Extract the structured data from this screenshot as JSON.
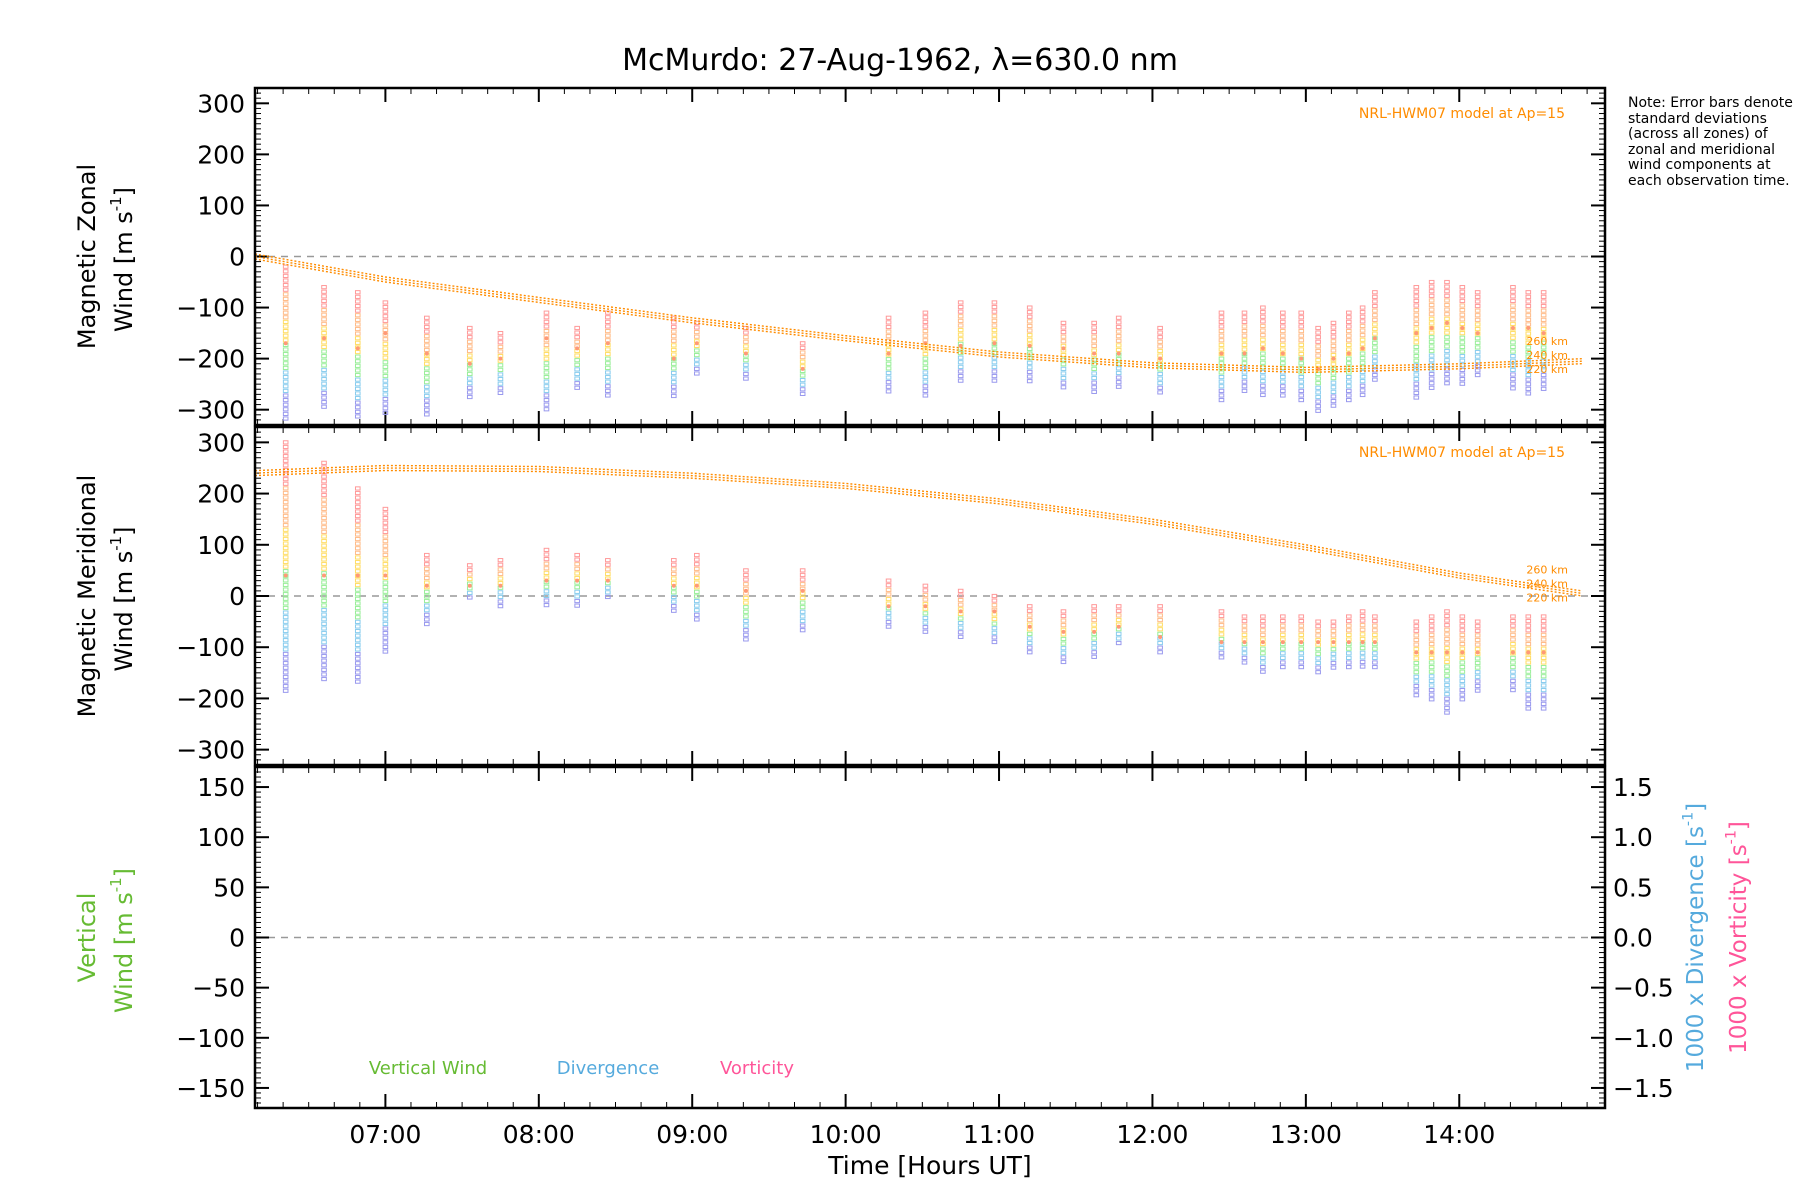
{
  "title": "McMurdo: 27-Aug-1962, λ=630.0 nm",
  "note": "Note: Error bars denote standard deviations (across all zones) of zonal and meridional wind components at each observation time.",
  "colors": {
    "model": "#ff8c00",
    "vertical": "#66bb33",
    "divergence": "#55aadd",
    "vorticity": "#ff5599",
    "zero_line": "#999999"
  },
  "chart_data": [
    {
      "type": "scatter",
      "panel": "zonal",
      "ylabel_line1": "Magnetic Zonal",
      "ylabel_line2": "Wind [m s",
      "ylabel_sup": "-1",
      "ylabel_close": "]",
      "ylim": [
        -330,
        330
      ],
      "yticks": [
        300,
        200,
        100,
        0,
        -100,
        -200,
        -300
      ],
      "ytick_labels": [
        "300",
        "200",
        "100",
        "0",
        "−100",
        "−200",
        "−300"
      ],
      "model_label": "NRL-HWM07 model at Ap=15",
      "alt_labels": [
        "260 km",
        "240 km",
        "220 km"
      ],
      "model_curve": {
        "t": [
          6.15,
          7,
          8,
          9,
          10,
          11,
          12,
          13,
          14,
          14.8
        ],
        "y": [
          0,
          -45,
          -85,
          -125,
          -160,
          -192,
          -213,
          -222,
          -215,
          -205
        ]
      },
      "obs": {
        "t": [
          6.35,
          6.6,
          6.82,
          7.0,
          7.27,
          7.55,
          7.75,
          8.05,
          8.25,
          8.45,
          8.88,
          9.03,
          9.35,
          9.72,
          10.28,
          10.52,
          10.75,
          10.97,
          11.2,
          11.42,
          11.62,
          11.78,
          12.05,
          12.45,
          12.6,
          12.72,
          12.85,
          12.97,
          13.08,
          13.18,
          13.28,
          13.37,
          13.45,
          13.72,
          13.82,
          13.92,
          14.02,
          14.12,
          14.35,
          14.45,
          14.55
        ],
        "mean": [
          -170,
          -160,
          -180,
          -150,
          -190,
          -210,
          -200,
          -160,
          -180,
          -170,
          -200,
          -170,
          -190,
          -220,
          -190,
          -170,
          -175,
          -170,
          -175,
          -180,
          -190,
          -190,
          -200,
          -190,
          -190,
          -180,
          -190,
          -200,
          -220,
          -200,
          -190,
          -180,
          -160,
          -150,
          -140,
          -130,
          -140,
          -150,
          -140,
          -140,
          -150
        ],
        "lo": [
          -320,
          -300,
          -320,
          -310,
          -310,
          -280,
          -270,
          -300,
          -260,
          -280,
          -280,
          -230,
          -240,
          -270,
          -270,
          -280,
          -250,
          -250,
          -250,
          -260,
          -270,
          -260,
          -270,
          -290,
          -270,
          -280,
          -280,
          -290,
          -310,
          -300,
          -290,
          -280,
          -250,
          -280,
          -260,
          -250,
          -250,
          -240,
          -260,
          -270,
          -260
        ],
        "hi": [
          -20,
          -60,
          -70,
          -90,
          -120,
          -140,
          -150,
          -110,
          -140,
          -110,
          -120,
          -130,
          -140,
          -170,
          -120,
          -110,
          -90,
          -90,
          -100,
          -130,
          -130,
          -120,
          -140,
          -110,
          -110,
          -100,
          -110,
          -110,
          -140,
          -130,
          -110,
          -100,
          -70,
          -60,
          -50,
          -50,
          -60,
          -70,
          -60,
          -70,
          -70
        ]
      }
    },
    {
      "type": "scatter",
      "panel": "meridional",
      "ylabel_line1": "Magnetic Meridional",
      "ylabel_line2": "Wind [m s",
      "ylabel_sup": "-1",
      "ylabel_close": "]",
      "ylim": [
        -330,
        330
      ],
      "yticks": [
        300,
        200,
        100,
        0,
        -100,
        -200,
        -300
      ],
      "ytick_labels": [
        "300",
        "200",
        "100",
        "0",
        "−100",
        "−200",
        "−300"
      ],
      "model_label": "NRL-HWM07 model at Ap=15",
      "alt_labels": [
        "260 km",
        "240 km",
        "220 km"
      ],
      "model_curve": {
        "t": [
          6.15,
          7,
          8,
          9,
          10,
          11,
          12,
          13,
          14,
          14.8
        ],
        "y": [
          240,
          250,
          248,
          235,
          215,
          185,
          145,
          95,
          40,
          5
        ]
      },
      "obs": {
        "t": [
          6.35,
          6.6,
          6.82,
          7.0,
          7.27,
          7.55,
          7.75,
          8.05,
          8.25,
          8.45,
          8.88,
          9.03,
          9.35,
          9.72,
          10.28,
          10.52,
          10.75,
          10.97,
          11.2,
          11.42,
          11.62,
          11.78,
          12.05,
          12.45,
          12.6,
          12.72,
          12.85,
          12.97,
          13.08,
          13.18,
          13.28,
          13.37,
          13.45,
          13.72,
          13.82,
          13.92,
          14.02,
          14.12,
          14.35,
          14.45,
          14.55
        ],
        "mean": [
          40,
          40,
          40,
          40,
          20,
          20,
          20,
          30,
          30,
          30,
          20,
          20,
          10,
          10,
          -20,
          -20,
          -30,
          -30,
          -60,
          -70,
          -70,
          -60,
          -80,
          -90,
          -90,
          -90,
          -90,
          -90,
          -90,
          -90,
          -90,
          -90,
          -90,
          -110,
          -110,
          -110,
          -110,
          -110,
          -110,
          -110,
          -110
        ],
        "lo": [
          -190,
          -170,
          -170,
          -110,
          -60,
          -10,
          -20,
          -20,
          -20,
          -10,
          -30,
          -50,
          -90,
          -70,
          -60,
          -70,
          -80,
          -90,
          -110,
          -130,
          -120,
          -100,
          -110,
          -120,
          -130,
          -150,
          -140,
          -140,
          -150,
          -140,
          -140,
          -140,
          -140,
          -200,
          -210,
          -230,
          -210,
          -190,
          -190,
          -220,
          -220
        ],
        "hi": [
          300,
          260,
          210,
          170,
          80,
          60,
          70,
          90,
          80,
          70,
          70,
          80,
          50,
          50,
          30,
          20,
          10,
          0,
          -20,
          -30,
          -20,
          -20,
          -20,
          -30,
          -40,
          -40,
          -40,
          -40,
          -50,
          -50,
          -40,
          -30,
          -40,
          -50,
          -40,
          -30,
          -40,
          -50,
          -40,
          -40,
          -40
        ]
      }
    },
    {
      "type": "line",
      "panel": "vertical",
      "ylabel_line1": "Vertical",
      "ylabel_line2": "Wind [m s",
      "ylabel_sup": "-1",
      "ylabel_close": "]",
      "ylim": [
        -170,
        170
      ],
      "yticks": [
        150,
        100,
        50,
        0,
        -50,
        -100,
        -150
      ],
      "ytick_labels": [
        "150",
        "100",
        "50",
        "0",
        "−50",
        "−100",
        "−150"
      ],
      "y2_labels": [
        "1.5",
        "1.0",
        "0.5",
        "0.0",
        "−0.5",
        "−1.0",
        "−1.5"
      ],
      "y2_label_div": "1000 x Divergence [s",
      "y2_label_vor": "1000 x Vorticity [s",
      "y2_sup": "-1",
      "y2_close": "]",
      "legend": [
        "Vertical Wind",
        "Divergence",
        "Vorticity"
      ],
      "series": []
    }
  ],
  "x_axis": {
    "label": "Time [Hours UT]",
    "xlim": [
      6.15,
      14.95
    ],
    "ticks": [
      7,
      8,
      9,
      10,
      11,
      12,
      13,
      14
    ],
    "tick_labels": [
      "07:00",
      "08:00",
      "09:00",
      "10:00",
      "11:00",
      "12:00",
      "13:00",
      "14:00"
    ]
  }
}
